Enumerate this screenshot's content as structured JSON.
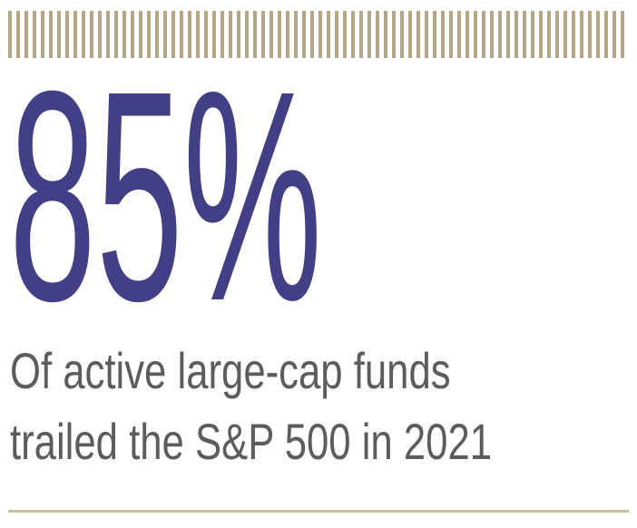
{
  "statistic": {
    "value": "85%"
  },
  "caption": {
    "line1": "Of active large-cap funds",
    "line2": "trailed the S&P 500 in 2021"
  },
  "colors": {
    "stripe": "#b4a785",
    "accent": "#433f86",
    "text": "#5d5b5c",
    "rule": "#c9bd9c"
  }
}
